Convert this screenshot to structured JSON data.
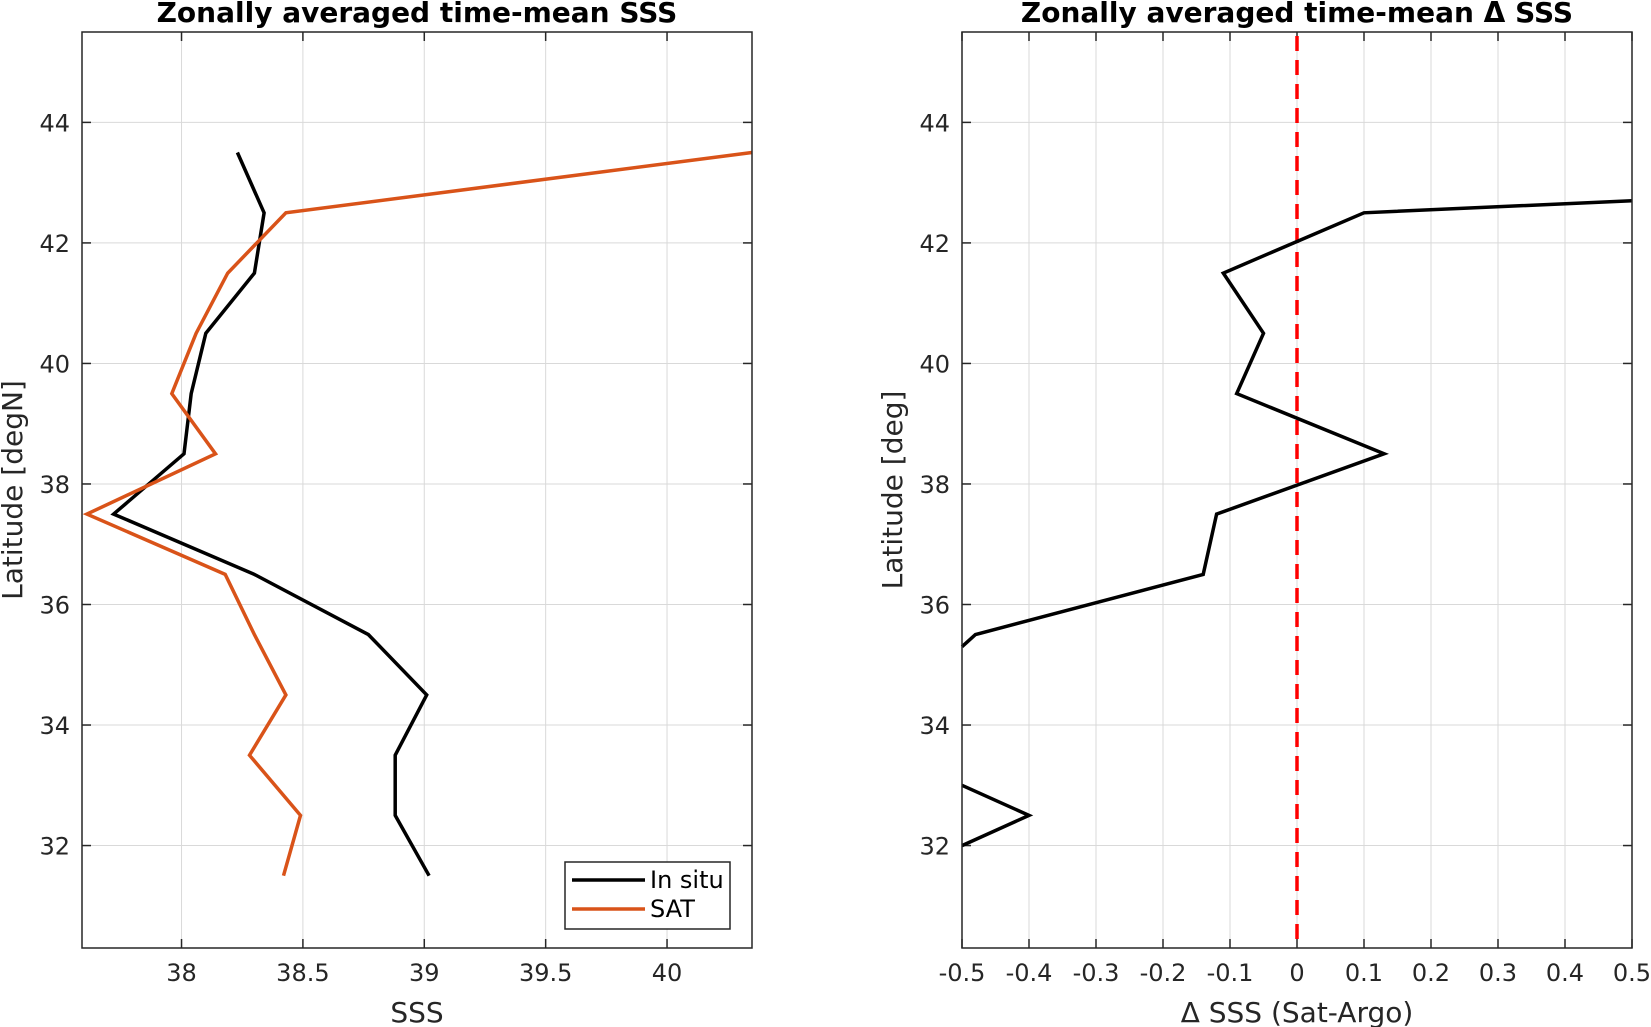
{
  "chart_data": [
    {
      "type": "line",
      "title": "Zonally averaged time-mean SSS",
      "xlabel": "SSS",
      "ylabel": "Latitude [degN]",
      "xlim": [
        37.59,
        40.35
      ],
      "ylim": [
        30.3,
        45.5
      ],
      "xticks": [
        38,
        38.5,
        39,
        39.5,
        40
      ],
      "xtick_labels": [
        "38",
        "38.5",
        "39",
        "39.5",
        "40"
      ],
      "yticks": [
        32,
        34,
        36,
        38,
        40,
        42,
        44
      ],
      "ytick_labels": [
        "32",
        "34",
        "36",
        "38",
        "40",
        "42",
        "44"
      ],
      "grid": true,
      "legend_position": "bottom-right",
      "series": [
        {
          "name": "In situ",
          "color": "#000000",
          "points": [
            [
              38.23,
              43.5
            ],
            [
              38.34,
              42.5
            ],
            [
              38.3,
              41.5
            ],
            [
              38.1,
              40.5
            ],
            [
              38.04,
              39.5
            ],
            [
              38.01,
              38.5
            ],
            [
              37.72,
              37.5
            ],
            [
              38.3,
              36.5
            ],
            [
              38.77,
              35.5
            ],
            [
              39.01,
              34.5
            ],
            [
              38.88,
              33.5
            ],
            [
              38.88,
              32.5
            ],
            [
              39.02,
              31.5
            ]
          ]
        },
        {
          "name": "SAT",
          "color": "#D95319",
          "points": [
            [
              40.35,
              43.5
            ],
            [
              38.43,
              42.5
            ],
            [
              38.19,
              41.5
            ],
            [
              38.06,
              40.5
            ],
            [
              37.96,
              39.5
            ],
            [
              38.14,
              38.5
            ],
            [
              37.61,
              37.5
            ],
            [
              38.18,
              36.5
            ],
            [
              38.3,
              35.5
            ],
            [
              38.43,
              34.5
            ],
            [
              38.28,
              33.5
            ],
            [
              38.49,
              32.5
            ],
            [
              38.42,
              31.5
            ]
          ]
        }
      ]
    },
    {
      "type": "line",
      "title": "Zonally averaged time-mean Δ SSS",
      "xlabel": "Δ SSS (Sat-Argo)",
      "ylabel": "Latitude [deg]",
      "xlim": [
        -0.5,
        0.5
      ],
      "ylim": [
        30.3,
        45.5
      ],
      "xticks": [
        -0.5,
        -0.4,
        -0.3,
        -0.2,
        -0.1,
        0,
        0.1,
        0.2,
        0.3,
        0.4,
        0.5
      ],
      "xtick_labels": [
        "-0.5",
        "-0.4",
        "-0.3",
        "-0.2",
        "-0.1",
        "0",
        "0.1",
        "0.2",
        "0.3",
        "0.4",
        "0.5"
      ],
      "yticks": [
        32,
        34,
        36,
        38,
        40,
        42,
        44
      ],
      "ytick_labels": [
        "32",
        "34",
        "36",
        "38",
        "40",
        "42",
        "44"
      ],
      "grid": true,
      "series": [
        {
          "color": "#000000",
          "segments": [
            [
              [
                0.5,
                42.7
              ],
              [
                0.1,
                42.5
              ],
              [
                -0.11,
                41.5
              ],
              [
                -0.05,
                40.5
              ],
              [
                -0.09,
                39.5
              ],
              [
                0.13,
                38.5
              ],
              [
                -0.12,
                37.5
              ],
              [
                -0.14,
                36.5
              ],
              [
                -0.48,
                35.5
              ],
              [
                -0.5,
                35.3
              ]
            ],
            [
              [
                -0.5,
                33.0
              ],
              [
                -0.4,
                32.5
              ],
              [
                -0.5,
                32.0
              ]
            ]
          ]
        }
      ],
      "reference_line": {
        "x": 0,
        "color": "#FF0000",
        "style": "dashed"
      }
    }
  ]
}
